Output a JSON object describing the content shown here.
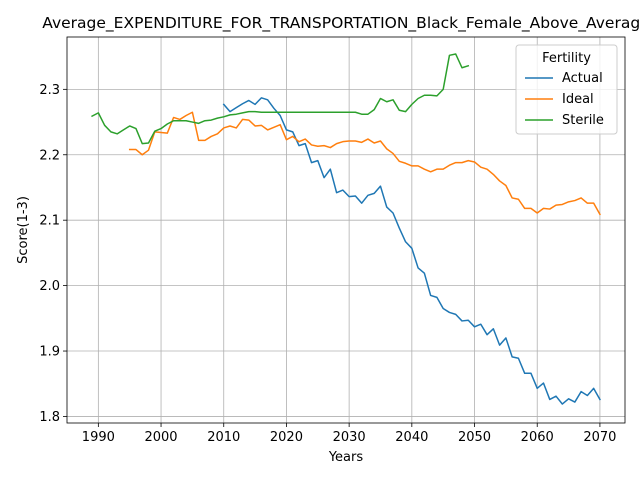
{
  "chart_data": {
    "type": "line",
    "title": "Average_EXPENDITURE_FOR_TRANSPORTATION_Black_Female_Above_Average",
    "xlabel": "Years",
    "ylabel": "Score(1-3)",
    "xlim": [
      1985,
      2074
    ],
    "ylim": [
      1.79,
      2.38
    ],
    "x_ticks": [
      1990,
      2000,
      2010,
      2020,
      2030,
      2040,
      2050,
      2060,
      2070
    ],
    "y_ticks": [
      1.8,
      1.9,
      2.0,
      2.1,
      2.2,
      2.3
    ],
    "grid": true,
    "legend": {
      "title": "Fertility",
      "placement": "top-right"
    },
    "series": [
      {
        "name": "Actual",
        "color": "#1f77b4",
        "x": [
          2010,
          2011,
          2012,
          2013,
          2014,
          2015,
          2016,
          2017,
          2018,
          2019,
          2020,
          2021,
          2022,
          2023,
          2024,
          2025,
          2026,
          2027,
          2028,
          2029,
          2030,
          2031,
          2032,
          2033,
          2034,
          2035,
          2036,
          2037,
          2038,
          2039,
          2040,
          2041,
          2042,
          2043,
          2044,
          2045,
          2046,
          2047,
          2048,
          2049,
          2050,
          2051,
          2052,
          2053,
          2054,
          2055,
          2056,
          2057,
          2058,
          2059,
          2060,
          2061,
          2062,
          2063,
          2064,
          2065,
          2066,
          2067,
          2068,
          2069,
          2070
        ],
        "values": [
          2.277,
          2.266,
          2.272,
          2.278,
          2.283,
          2.277,
          2.287,
          2.284,
          2.271,
          2.26,
          2.238,
          2.235,
          2.214,
          2.217,
          2.188,
          2.191,
          2.165,
          2.178,
          2.142,
          2.146,
          2.136,
          2.137,
          2.126,
          2.138,
          2.141,
          2.152,
          2.12,
          2.111,
          2.088,
          2.067,
          2.057,
          2.027,
          2.019,
          1.985,
          1.982,
          1.965,
          1.959,
          1.956,
          1.946,
          1.947,
          1.937,
          1.941,
          1.925,
          1.934,
          1.909,
          1.92,
          1.891,
          1.889,
          1.866,
          1.866,
          1.843,
          1.851,
          1.826,
          1.831,
          1.819,
          1.827,
          1.822,
          1.838,
          1.832,
          1.843,
          1.826
        ]
      },
      {
        "name": "Ideal",
        "color": "#ff7f0e",
        "x": [
          1995,
          1996,
          1997,
          1998,
          1999,
          2000,
          2001,
          2002,
          2003,
          2004,
          2005,
          2006,
          2007,
          2008,
          2009,
          2010,
          2011,
          2012,
          2013,
          2014,
          2015,
          2016,
          2017,
          2018,
          2019,
          2020,
          2021,
          2022,
          2023,
          2024,
          2025,
          2026,
          2027,
          2028,
          2029,
          2030,
          2031,
          2032,
          2033,
          2034,
          2035,
          2036,
          2037,
          2038,
          2039,
          2040,
          2041,
          2042,
          2043,
          2044,
          2045,
          2046,
          2047,
          2048,
          2049,
          2050,
          2051,
          2052,
          2053,
          2054,
          2055,
          2056,
          2057,
          2058,
          2059,
          2060,
          2061,
          2062,
          2063,
          2064,
          2065,
          2066,
          2067,
          2068,
          2069,
          2070
        ],
        "values": [
          2.208,
          2.208,
          2.2,
          2.207,
          2.235,
          2.234,
          2.233,
          2.257,
          2.254,
          2.26,
          2.265,
          2.222,
          2.222,
          2.228,
          2.232,
          2.241,
          2.244,
          2.241,
          2.254,
          2.253,
          2.244,
          2.245,
          2.238,
          2.242,
          2.246,
          2.223,
          2.228,
          2.22,
          2.224,
          2.215,
          2.213,
          2.214,
          2.211,
          2.217,
          2.22,
          2.221,
          2.221,
          2.219,
          2.224,
          2.218,
          2.221,
          2.209,
          2.202,
          2.19,
          2.187,
          2.183,
          2.183,
          2.178,
          2.174,
          2.178,
          2.178,
          2.184,
          2.188,
          2.188,
          2.191,
          2.189,
          2.181,
          2.178,
          2.17,
          2.16,
          2.153,
          2.134,
          2.132,
          2.118,
          2.118,
          2.111,
          2.118,
          2.117,
          2.123,
          2.124,
          2.128,
          2.13,
          2.134,
          2.126,
          2.126,
          2.109
        ]
      },
      {
        "name": "Sterile",
        "color": "#2ca02c",
        "x": [
          1989,
          1990,
          1991,
          1992,
          1993,
          1994,
          1995,
          1996,
          1997,
          1998,
          1999,
          2000,
          2001,
          2002,
          2003,
          2004,
          2005,
          2006,
          2007,
          2008,
          2009,
          2010,
          2011,
          2012,
          2013,
          2014,
          2015,
          2016,
          2017,
          2018,
          2019,
          2020,
          2021,
          2022,
          2023,
          2024,
          2025,
          2026,
          2027,
          2028,
          2029,
          2030,
          2031,
          2032,
          2033,
          2034,
          2035,
          2036,
          2037,
          2038,
          2039,
          2040,
          2041,
          2042,
          2043,
          2044,
          2045,
          2046,
          2047,
          2048,
          2049
        ],
        "values": [
          2.259,
          2.264,
          2.245,
          2.235,
          2.232,
          2.238,
          2.244,
          2.24,
          2.217,
          2.218,
          2.236,
          2.24,
          2.247,
          2.252,
          2.252,
          2.252,
          2.25,
          2.248,
          2.252,
          2.253,
          2.256,
          2.258,
          2.261,
          2.262,
          2.264,
          2.266,
          2.266,
          2.265,
          2.265,
          2.265,
          2.265,
          2.265,
          2.265,
          2.265,
          2.265,
          2.265,
          2.265,
          2.265,
          2.265,
          2.265,
          2.265,
          2.265,
          2.265,
          2.262,
          2.262,
          2.269,
          2.286,
          2.281,
          2.284,
          2.268,
          2.266,
          2.277,
          2.286,
          2.291,
          2.291,
          2.29,
          2.3,
          2.352,
          2.354,
          2.333,
          2.336
        ]
      }
    ]
  }
}
